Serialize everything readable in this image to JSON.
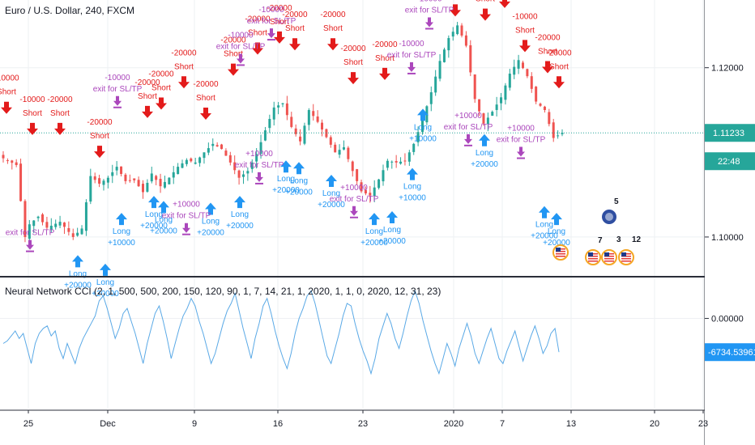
{
  "chart_title": "Euro / U.S. Dollar, 240, FXCM",
  "indicator_title": "Neural Network CCI (2, 1, 500, 500, 200, 150, 120, 90, 1, 7, 14, 21, 1, 2020, 1, 1, 0, 2020, 12, 31, 23)",
  "colors": {
    "up": "#26a69a",
    "down": "#ef5350",
    "sell": "#e31b1b",
    "buy": "#2196f3",
    "exit": "#ab47bc",
    "cci": "#5aa9e6",
    "price_line": "#26a69a",
    "indicator_badge": "#2196f3"
  },
  "event_badges": [
    "5",
    "7",
    "3",
    "12"
  ],
  "chart_data": [
    {
      "type": "candlestick",
      "title": "Euro / U.S. Dollar, 240, FXCM",
      "ylim": [
        1.0955,
        1.128
      ],
      "y_ticks": [
        "1.12000",
        "1.10000"
      ],
      "last_price": "1.11233",
      "last_price_value": 1.1123,
      "countdown": "22:48",
      "x_tick_labels": [
        "25",
        "Dec",
        "9",
        "16",
        "23",
        "2020",
        "7",
        "13",
        "20",
        "23"
      ],
      "close_path": [
        [
          0,
          1.1093
        ],
        [
          3,
          1.1085
        ],
        [
          5,
          1.1
        ],
        [
          6,
          1.1015
        ],
        [
          8,
          1.1024
        ],
        [
          10,
          1.1011
        ],
        [
          13,
          1.1018
        ],
        [
          16,
          1.1
        ],
        [
          18,
          1.101
        ],
        [
          20,
          1.1072
        ],
        [
          22,
          1.1063
        ],
        [
          24,
          1.107
        ],
        [
          26,
          1.1083
        ],
        [
          28,
          1.1066
        ],
        [
          30,
          1.1067
        ],
        [
          32,
          1.1053
        ],
        [
          34,
          1.1075
        ],
        [
          36,
          1.106
        ],
        [
          38,
          1.107
        ],
        [
          40,
          1.1083
        ],
        [
          42,
          1.1091
        ],
        [
          44,
          1.1088
        ],
        [
          46,
          1.11
        ],
        [
          48,
          1.111
        ],
        [
          50,
          1.1104
        ],
        [
          52,
          1.1088
        ],
        [
          54,
          1.107
        ],
        [
          56,
          1.1078
        ],
        [
          58,
          1.1098
        ],
        [
          60,
          1.1126
        ],
        [
          62,
          1.1153
        ],
        [
          64,
          1.1158
        ],
        [
          66,
          1.113
        ],
        [
          68,
          1.1113
        ],
        [
          70,
          1.115
        ],
        [
          72,
          1.1136
        ],
        [
          74,
          1.1118
        ],
        [
          76,
          1.11
        ],
        [
          78,
          1.1106
        ],
        [
          80,
          1.1078
        ],
        [
          82,
          1.1054
        ],
        [
          84,
          1.1049
        ],
        [
          86,
          1.1068
        ],
        [
          88,
          1.109
        ],
        [
          90,
          1.1088
        ],
        [
          92,
          1.109
        ],
        [
          94,
          1.111
        ],
        [
          96,
          1.1138
        ],
        [
          98,
          1.1171
        ],
        [
          100,
          1.1208
        ],
        [
          102,
          1.1235
        ],
        [
          104,
          1.125
        ],
        [
          106,
          1.1226
        ],
        [
          108,
          1.1163
        ],
        [
          110,
          1.1134
        ],
        [
          112,
          1.1148
        ],
        [
          114,
          1.1165
        ],
        [
          116,
          1.1193
        ],
        [
          118,
          1.1209
        ],
        [
          120,
          1.119
        ],
        [
          122,
          1.116
        ],
        [
          124,
          1.115
        ],
        [
          126,
          1.1117
        ],
        [
          128,
          1.1123
        ]
      ],
      "candle_count": 129,
      "signals": [
        {
          "kind": "short",
          "label": "Short",
          "amount": "-10000",
          "x": 0,
          "tx": 8,
          "price": 1.1135
        },
        {
          "kind": "short",
          "label": "Short",
          "amount": "-10000",
          "x": 6,
          "tx": 40,
          "price": 1.111
        },
        {
          "kind": "short",
          "label": "Short",
          "amount": "-20000",
          "x": 11,
          "tx": 74,
          "price": 1.111
        },
        {
          "kind": "short",
          "label": "Short",
          "amount": "-20000",
          "x": 19,
          "tx": 123,
          "price": 1.1083
        },
        {
          "kind": "short",
          "label": "Short",
          "amount": "-20000",
          "x": 33,
          "tx": 182,
          "price": 1.113
        },
        {
          "kind": "short",
          "label": "Short",
          "amount": "-20000",
          "x": 36,
          "tx": 199,
          "price": 1.114
        },
        {
          "kind": "short",
          "label": "Short",
          "amount": "-20000",
          "x": 40,
          "tx": 227,
          "price": 1.1165
        },
        {
          "kind": "short",
          "label": "Short",
          "amount": "-20000",
          "x": 44,
          "tx": 254,
          "price": 1.1128
        },
        {
          "kind": "short",
          "label": "Short",
          "amount": "-20000",
          "x": 50,
          "tx": 288,
          "price": 1.118
        },
        {
          "kind": "short",
          "label": "Short",
          "amount": "-20000",
          "x": 55,
          "tx": 318,
          "price": 1.1205
        },
        {
          "kind": "short",
          "label": "Short",
          "amount": "-20000",
          "x": 60,
          "tx": 345,
          "price": 1.1218
        },
        {
          "kind": "short",
          "label": "Short",
          "amount": "-20000",
          "x": 64,
          "tx": 364,
          "price": 1.121
        },
        {
          "kind": "short",
          "label": "Short",
          "amount": "-20000",
          "x": 72,
          "tx": 411,
          "price": 1.121
        },
        {
          "kind": "short",
          "label": "Short",
          "amount": "-20000",
          "x": 75,
          "tx": 436,
          "price": 1.117
        },
        {
          "kind": "short",
          "label": "Short",
          "amount": "-20000",
          "x": 81,
          "tx": 475,
          "price": 1.1175
        },
        {
          "kind": "short",
          "label": "Short",
          "amount": "-20000",
          "x": 102,
          "tx": 562,
          "price": 1.125
        },
        {
          "kind": "short",
          "label": "Short",
          "amount": "-20000",
          "x": 104,
          "tx": 599,
          "price": 1.1245
        },
        {
          "kind": "short",
          "label": "Short",
          "amount": "-20000",
          "x": 109,
          "tx": 623,
          "price": 1.126
        },
        {
          "kind": "short",
          "label": "Short",
          "amount": "-10000",
          "x": 115,
          "tx": 648,
          "price": 1.1208
        },
        {
          "kind": "short",
          "label": "Short",
          "amount": "-20000",
          "x": 119,
          "tx": 676,
          "price": 1.1183
        },
        {
          "kind": "short",
          "label": "Short",
          "amount": "-20000",
          "x": 124,
          "tx": 690,
          "price": 1.1165
        },
        {
          "kind": "long",
          "label": "Long",
          "amount": "+10000",
          "x": 21,
          "tx": 150,
          "price": 1.104
        },
        {
          "kind": "long",
          "label": "Long",
          "amount": "+20000",
          "x": 28,
          "tx": 190,
          "price": 1.106
        },
        {
          "kind": "long",
          "label": "Long",
          "amount": "+20000",
          "x": 30,
          "tx": 202,
          "price": 1.1054
        },
        {
          "kind": "long",
          "label": "Long",
          "amount": "+20000",
          "x": 43,
          "tx": 260,
          "price": 1.1052
        },
        {
          "kind": "long",
          "label": "Long",
          "amount": "+20000",
          "x": 51,
          "tx": 296,
          "price": 1.106
        },
        {
          "kind": "long",
          "label": "Long",
          "amount": "+20000",
          "x": 57,
          "tx": 353,
          "price": 1.1102
        },
        {
          "kind": "long",
          "label": "Long",
          "amount": "+20000",
          "x": 59,
          "tx": 369,
          "price": 1.11
        },
        {
          "kind": "long",
          "label": "Long",
          "amount": "+20000",
          "x": 76,
          "tx": 409,
          "price": 1.1085
        },
        {
          "kind": "long",
          "label": "Long",
          "amount": "+20000",
          "x": 84,
          "tx": 462,
          "price": 1.104
        },
        {
          "kind": "long",
          "label": "Long",
          "amount": "+20000",
          "x": 88,
          "tx": 484,
          "price": 1.1042
        },
        {
          "kind": "long",
          "label": "Long",
          "amount": "+10000",
          "x": 94,
          "tx": 509,
          "price": 1.1093
        },
        {
          "kind": "long",
          "label": "Long",
          "amount": "+10000",
          "x": 101,
          "tx": 522,
          "price": 1.1163
        },
        {
          "kind": "long",
          "label": "Long",
          "amount": "+20000",
          "x": 113,
          "tx": 598,
          "price": 1.1133
        },
        {
          "kind": "long",
          "label": "Long",
          "amount": "+20000",
          "x": 123,
          "tx": 672,
          "price": 1.1048
        },
        {
          "kind": "long",
          "label": "Long",
          "amount": "+20000",
          "x": 126,
          "tx": 687,
          "price": 1.104
        },
        {
          "kind": "long",
          "label": "Long",
          "amount": "+20000",
          "x": 62,
          "tx": 96,
          "price": 1.099
        },
        {
          "kind": "long",
          "label": "Long",
          "amount": "+20000",
          "x": 31,
          "tx": 130,
          "price": 1.098
        }
      ],
      "exits": [
        {
          "label": "exit for SL/TP",
          "amount": "-10000",
          "tx": 145,
          "price": 1.1155
        },
        {
          "label": "exit for SL/TP",
          "amount": "+10000",
          "tx": 230,
          "price": 1.1005
        },
        {
          "label": "exit for SL/TP",
          "amount": "+10000",
          "tx": 320,
          "price": 1.1065
        },
        {
          "label": "exit for SL/TP",
          "amount": "-10000",
          "tx": 297,
          "price": 1.1205
        },
        {
          "label": "exit for SL/TP",
          "amount": "-10000",
          "tx": 335,
          "price": 1.1235
        },
        {
          "label": "exit for SL/TP",
          "amount": "+10000",
          "tx": 437,
          "price": 1.1025
        },
        {
          "label": "exit for SL/TP",
          "amount": "-10000",
          "tx": 508,
          "price": 1.1195
        },
        {
          "label": "exit for SL/TP",
          "amount": "-10000",
          "tx": 530,
          "price": 1.1248
        },
        {
          "label": "exit for SL/TP",
          "amount": "+10000",
          "tx": 578,
          "price": 1.111
        },
        {
          "label": "exit for SL/TP",
          "amount": "+10000",
          "tx": 643,
          "price": 1.1095
        },
        {
          "label": "exit for SL/TP",
          "amount": "",
          "tx": 37,
          "price": 1.0985
        }
      ]
    },
    {
      "type": "line",
      "title": "Neural Network CCI (2, 1, 500, 500, 200, 150, 120, 90, 1, 7, 14, 21, 1, 2020, 1, 1, 0, 2020, 12, 31, 23)",
      "ylim": [
        -18000,
        8000
      ],
      "y_ticks": [
        "0.00000"
      ],
      "zero_value": 0,
      "last_value": "-6734.53961",
      "last_value_num": -6734,
      "series_samples": 140,
      "values": [
        -5000,
        -4500,
        -3500,
        -2500,
        -4000,
        -3000,
        -6000,
        -9000,
        -5000,
        -3000,
        -2000,
        -1500,
        -3500,
        -2500,
        -6000,
        -8000,
        -5000,
        -7000,
        -9000,
        -6000,
        -4000,
        -2500,
        -1000,
        500,
        3500,
        4500,
        2000,
        -1000,
        -4000,
        -2000,
        1000,
        2000,
        -500,
        -3000,
        -6000,
        -9000,
        -5000,
        -2000,
        1000,
        2500,
        -500,
        -4000,
        -8000,
        -5000,
        -2000,
        500,
        2000,
        4000,
        2500,
        -500,
        -3000,
        -6000,
        -9000,
        -7000,
        -4000,
        -1000,
        1500,
        3000,
        5000,
        1500,
        -2000,
        -5000,
        -8000,
        -4000,
        -1000,
        2500,
        4000,
        1000,
        -2500,
        -5500,
        -8000,
        -10000,
        -7000,
        -3000,
        0,
        2000,
        4500,
        5500,
        3000,
        -500,
        -4000,
        -7500,
        -9000,
        -6000,
        -3000,
        500,
        3000,
        2500,
        -1000,
        -4000,
        -6500,
        -8500,
        -11000,
        -8000,
        -4000,
        -1500,
        1000,
        -1000,
        -4000,
        -6000,
        -3000,
        500,
        3500,
        5500,
        3000,
        -500,
        -3500,
        -6500,
        -9000,
        -11000,
        -8000,
        -5000,
        -7000,
        -9500,
        -6000,
        -3500,
        -1000,
        -3500,
        -7000,
        -9000,
        -6500,
        -4000,
        -2000,
        -5000,
        -8000,
        -9000,
        -6500,
        -4500,
        -2500,
        -5500,
        -8500,
        -6000,
        -3500,
        -1500,
        -4000,
        -7000,
        -5500,
        -3000,
        -2000,
        -6734
      ]
    }
  ]
}
